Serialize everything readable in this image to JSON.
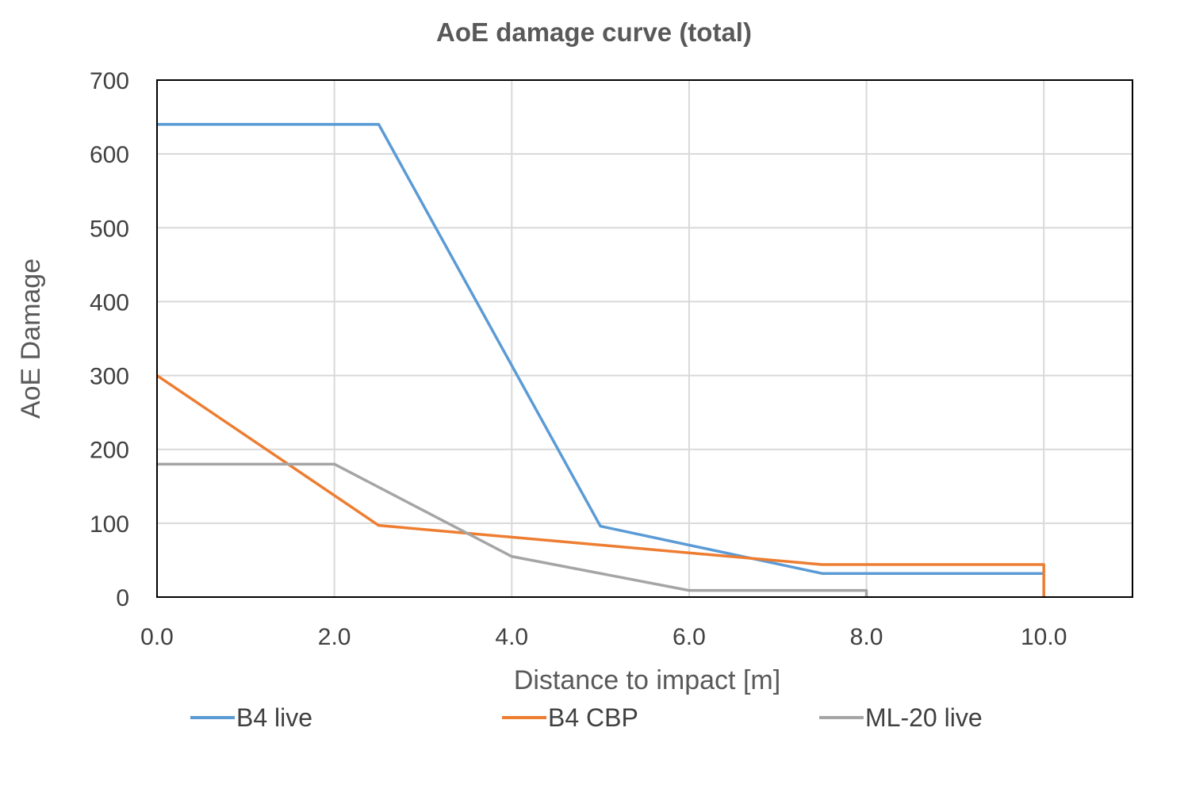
{
  "chart_data": {
    "type": "line",
    "title": "AoE damage curve (total)",
    "xlabel": "Distance to impact [m]",
    "ylabel": "AoE Damage",
    "xlim": [
      0,
      11
    ],
    "ylim": [
      0,
      700
    ],
    "x_ticks": [
      "0.0",
      "2.0",
      "4.0",
      "6.0",
      "8.0",
      "10.0"
    ],
    "y_ticks": [
      "0",
      "100",
      "200",
      "300",
      "400",
      "500",
      "600",
      "700"
    ],
    "grid": true,
    "legend_position": "bottom",
    "series": [
      {
        "name": "B4 live",
        "color": "#5b9bd5",
        "points": [
          [
            0,
            640
          ],
          [
            2.5,
            640
          ],
          [
            5,
            96
          ],
          [
            7.5,
            32
          ],
          [
            10,
            32
          ]
        ]
      },
      {
        "name": "B4 CBP",
        "color": "#ed7d31",
        "points": [
          [
            0,
            300
          ],
          [
            2.5,
            97
          ],
          [
            7.5,
            44
          ],
          [
            10,
            44
          ],
          [
            10,
            0
          ]
        ]
      },
      {
        "name": "ML-20 live",
        "color": "#a5a5a5",
        "points": [
          [
            0,
            180
          ],
          [
            2,
            180
          ],
          [
            4,
            55
          ],
          [
            6,
            9
          ],
          [
            8,
            9
          ],
          [
            8,
            0
          ]
        ]
      }
    ]
  }
}
